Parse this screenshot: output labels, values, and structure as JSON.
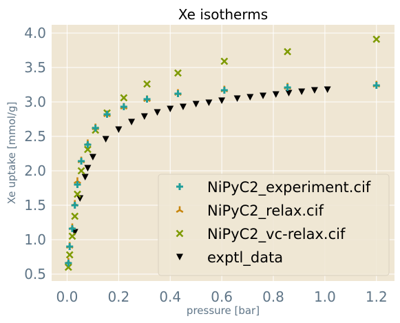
{
  "chart_data": {
    "type": "scatter",
    "title": "Xe isotherms",
    "xlabel": "pressure [bar]",
    "ylabel": "Xe uptake [mmol/g]",
    "xlim": [
      -0.06,
      1.27
    ],
    "ylim": [
      0.4,
      4.12
    ],
    "xticks": [
      0.0,
      0.2,
      0.4,
      0.6,
      0.8,
      1.0,
      1.2
    ],
    "xtick_labels": [
      "0.0",
      "0.2",
      "0.4",
      "0.6",
      "0.8",
      "1.0",
      "1.2"
    ],
    "yticks": [
      0.5,
      1.0,
      1.5,
      2.0,
      2.5,
      3.0,
      3.5,
      4.0
    ],
    "ytick_labels": [
      "0.5",
      "1.0",
      "1.5",
      "2.0",
      "2.5",
      "3.0",
      "3.5",
      "4.0"
    ],
    "grid": true,
    "legend_position": "lower-right",
    "colors": {
      "plot_background": "#efe6d3",
      "grid": "#ffffff"
    },
    "series": [
      {
        "name": "NiPyC2_experiment.cif",
        "marker": "plus",
        "color": "#1f9e9a",
        "x": [
          0.005,
          0.01,
          0.02,
          0.03,
          0.04,
          0.055,
          0.08,
          0.11,
          0.155,
          0.22,
          0.31,
          0.43,
          0.61,
          0.855,
          1.2
        ],
        "y": [
          0.66,
          0.9,
          1.16,
          1.5,
          1.8,
          2.14,
          2.38,
          2.62,
          2.82,
          2.93,
          3.04,
          3.12,
          3.17,
          3.21,
          3.24
        ]
      },
      {
        "name": "NiPyC2_relax.cif",
        "marker": "tri_up",
        "color": "#c8860f",
        "x": [
          0.005,
          0.01,
          0.02,
          0.03,
          0.04,
          0.055,
          0.08,
          0.11,
          0.155,
          0.22,
          0.31,
          0.43,
          0.61,
          0.855,
          1.2
        ],
        "y": [
          0.68,
          0.91,
          1.18,
          1.52,
          1.85,
          2.15,
          2.4,
          2.63,
          2.82,
          2.93,
          3.04,
          3.13,
          3.18,
          3.22,
          3.25
        ]
      },
      {
        "name": "NiPyC2_vc-relax.cif",
        "marker": "x",
        "color": "#7e9a00",
        "x": [
          0.005,
          0.01,
          0.02,
          0.03,
          0.04,
          0.055,
          0.08,
          0.11,
          0.155,
          0.22,
          0.31,
          0.43,
          0.61,
          0.855,
          1.2
        ],
        "y": [
          0.6,
          0.78,
          1.05,
          1.34,
          1.66,
          2.0,
          2.31,
          2.59,
          2.84,
          3.06,
          3.26,
          3.42,
          3.59,
          3.73,
          3.91
        ]
      },
      {
        "name": "exptl_data",
        "marker": "tri_down",
        "color": "#000000",
        "x": [
          0.03,
          0.05,
          0.07,
          0.08,
          0.1,
          0.15,
          0.2,
          0.25,
          0.3,
          0.35,
          0.4,
          0.45,
          0.5,
          0.55,
          0.6,
          0.66,
          0.71,
          0.76,
          0.81,
          0.86,
          0.91,
          0.96,
          1.01
        ],
        "y": [
          1.11,
          1.6,
          1.91,
          2.04,
          2.2,
          2.46,
          2.6,
          2.71,
          2.79,
          2.85,
          2.9,
          2.93,
          2.97,
          2.99,
          3.02,
          3.05,
          3.07,
          3.09,
          3.11,
          3.13,
          3.15,
          3.17,
          3.18
        ]
      }
    ]
  }
}
